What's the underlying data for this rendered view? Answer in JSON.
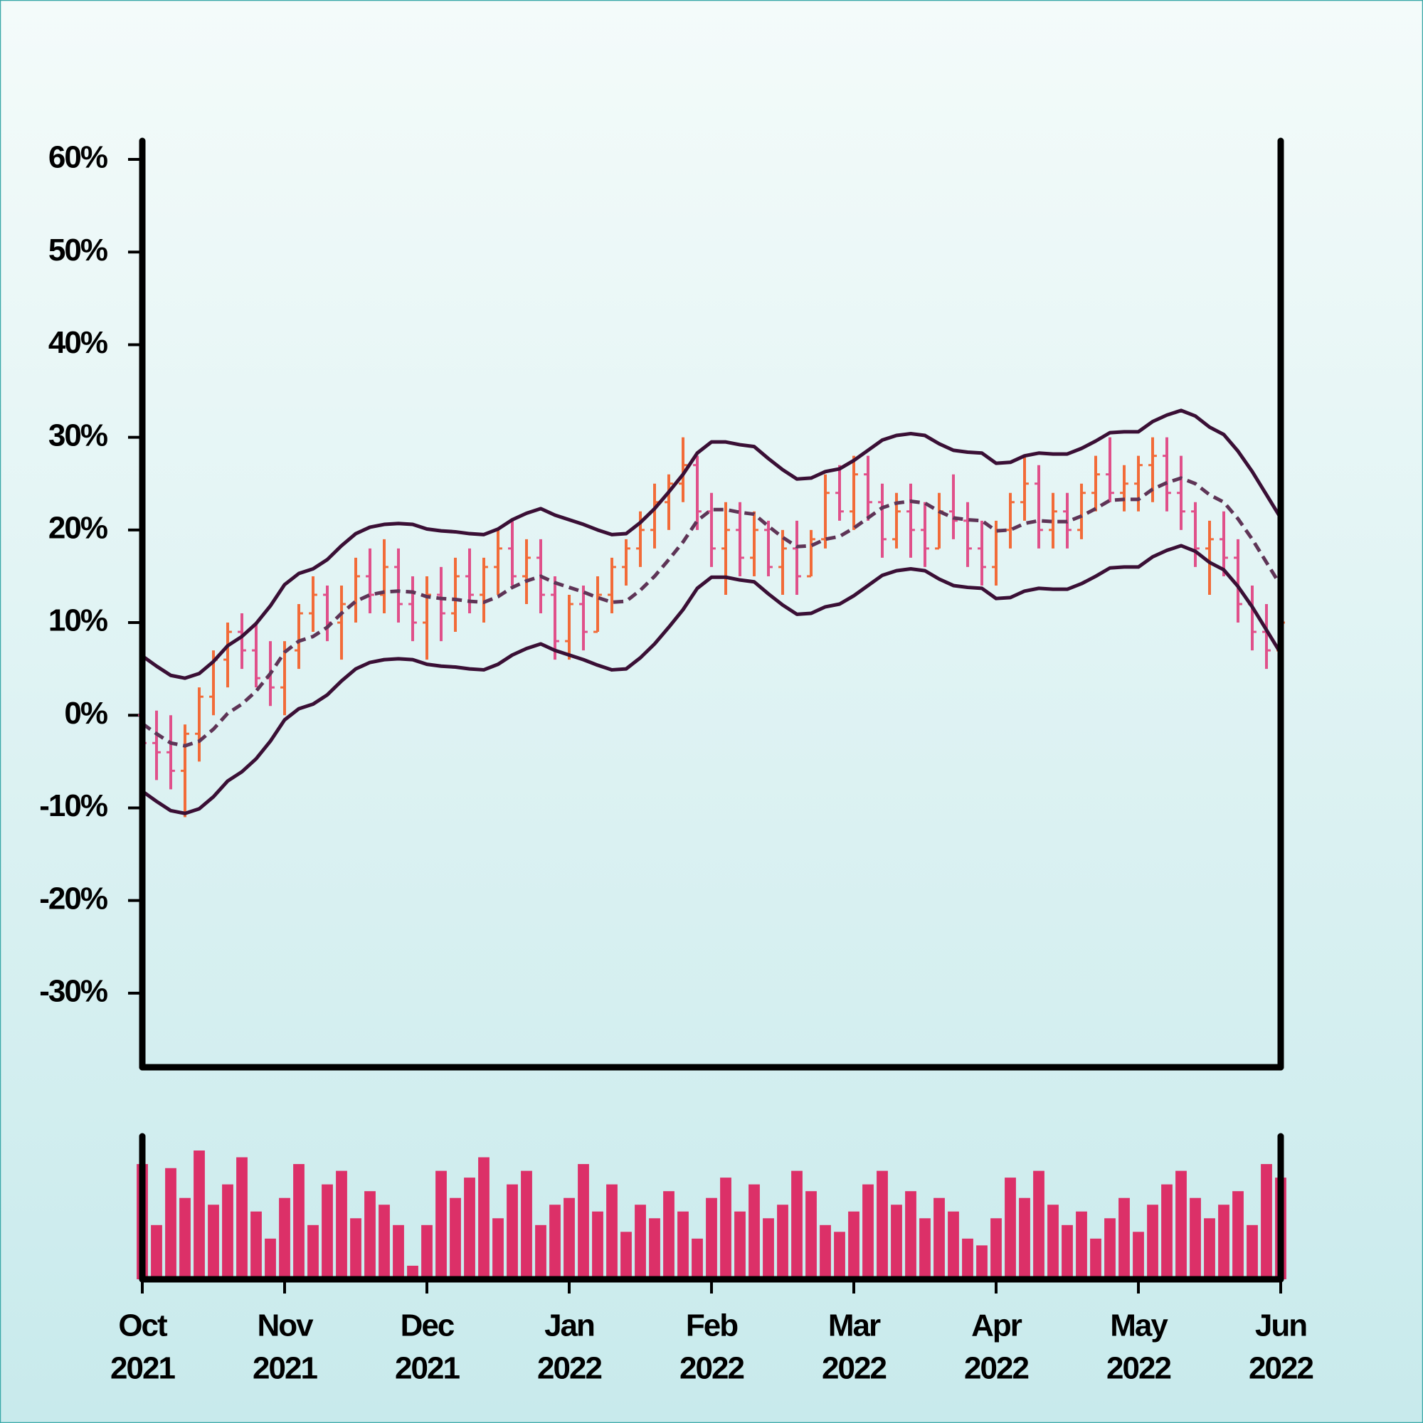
{
  "chart_data": {
    "type": "ohlc",
    "x": [
      0,
      0.1,
      0.2,
      0.3,
      0.4,
      0.5,
      0.6,
      0.7,
      0.8,
      0.9,
      1,
      1.1,
      1.2,
      1.3,
      1.4,
      1.5,
      1.6,
      1.7,
      1.8,
      1.9,
      2,
      2.1,
      2.2,
      2.3,
      2.4,
      2.5,
      2.6,
      2.7,
      2.8,
      2.9,
      3,
      3.1,
      3.2,
      3.3,
      3.4,
      3.5,
      3.6,
      3.7,
      3.8,
      3.9,
      4,
      4.1,
      4.2,
      4.3,
      4.4,
      4.5,
      4.6,
      4.7,
      4.8,
      4.9,
      5,
      5.1,
      5.2,
      5.3,
      5.4,
      5.5,
      5.6,
      5.7,
      5.8,
      5.9,
      6,
      6.1,
      6.2,
      6.3,
      6.4,
      6.5,
      6.6,
      6.7,
      6.8,
      6.9,
      7,
      7.1,
      7.2,
      7.3,
      7.4,
      7.5,
      7.6,
      7.7,
      7.8,
      7.9,
      8
    ],
    "open": [
      0,
      -3,
      -4,
      -6,
      -2,
      2,
      6,
      9,
      7,
      4,
      3,
      7,
      11,
      13,
      10,
      12,
      15,
      13,
      16,
      12,
      10,
      13,
      11,
      15,
      13,
      16,
      18,
      15,
      17,
      13,
      8,
      12,
      9,
      13,
      16,
      18,
      20,
      23,
      25,
      27,
      22,
      18,
      20,
      17,
      20,
      16,
      18,
      15,
      19,
      24,
      22,
      26,
      23,
      19,
      22,
      20,
      18,
      22,
      21,
      18,
      16,
      20,
      23,
      25,
      20,
      22,
      20,
      24,
      26,
      24,
      25,
      27,
      28,
      24,
      22,
      18,
      19,
      17,
      12,
      9,
      7
    ],
    "high": [
      1.5,
      0.5,
      0,
      -1,
      3,
      7,
      10,
      11,
      10,
      8,
      8,
      12,
      15,
      14,
      14,
      17,
      18,
      19,
      18,
      15,
      15,
      16,
      17,
      18,
      17,
      20,
      21,
      19,
      19,
      15,
      13,
      14,
      15,
      17,
      19,
      22,
      25,
      26,
      30,
      28,
      24,
      23,
      23,
      22,
      21,
      20,
      21,
      20,
      26,
      27,
      28,
      28,
      25,
      24,
      25,
      23,
      24,
      26,
      23,
      21,
      21,
      24,
      28,
      27,
      24,
      24,
      25,
      28,
      30,
      27,
      28,
      30,
      30,
      28,
      23,
      21,
      22,
      19,
      14,
      12,
      12
    ],
    "low": [
      -4,
      -7,
      -8,
      -11,
      -5,
      0,
      3,
      5,
      3,
      1,
      0,
      5,
      9,
      8,
      6,
      10,
      11,
      11,
      10,
      8,
      6,
      8,
      9,
      11,
      10,
      13,
      14,
      12,
      11,
      6,
      6,
      7,
      9,
      11,
      14,
      16,
      18,
      20,
      23,
      20,
      16,
      13,
      15,
      15,
      15,
      13,
      13,
      15,
      18,
      21,
      20,
      21,
      17,
      18,
      17,
      16,
      18,
      19,
      16,
      14,
      14,
      18,
      21,
      18,
      18,
      18,
      19,
      22,
      23,
      22,
      22,
      23,
      22,
      20,
      16,
      13,
      15,
      10,
      7,
      5,
      4
    ],
    "close": [
      -3,
      -4,
      -6,
      -2,
      2,
      6,
      9,
      7,
      4,
      3,
      7,
      11,
      13,
      10,
      12,
      15,
      13,
      16,
      12,
      10,
      13,
      11,
      15,
      13,
      16,
      18,
      15,
      17,
      13,
      8,
      12,
      9,
      13,
      16,
      18,
      20,
      23,
      25,
      27,
      22,
      18,
      20,
      17,
      20,
      16,
      18,
      15,
      19,
      24,
      22,
      26,
      23,
      19,
      22,
      20,
      18,
      22,
      21,
      18,
      16,
      20,
      23,
      25,
      20,
      22,
      20,
      24,
      26,
      24,
      25,
      27,
      28,
      24,
      22,
      18,
      19,
      17,
      12,
      9,
      7,
      10
    ],
    "upper_band": [
      6.4,
      5.3,
      4.3,
      4,
      4.5,
      5.8,
      7.5,
      8.5,
      9.9,
      11.8,
      14.1,
      15.3,
      15.8,
      16.8,
      18.3,
      19.6,
      20.3,
      20.6,
      20.7,
      20.6,
      20.1,
      19.9,
      19.8,
      19.6,
      19.5,
      20.1,
      21.1,
      21.8,
      22.3,
      21.6,
      21.1,
      20.6,
      20,
      19.5,
      19.6,
      20.8,
      22.3,
      24.1,
      26,
      28.3,
      29.5,
      29.5,
      29.2,
      29,
      27.7,
      26.5,
      25.5,
      25.6,
      26.3,
      26.6,
      27.5,
      28.6,
      29.7,
      30.2,
      30.4,
      30.2,
      29.3,
      28.6,
      28.4,
      28.3,
      27.2,
      27.3,
      28,
      28.3,
      28.2,
      28.2,
      28.8,
      29.6,
      30.5,
      30.6,
      30.6,
      31.7,
      32.4,
      32.9,
      32.3,
      31.1,
      30.3,
      28.5,
      26.3,
      23.8,
      21.3
    ],
    "middle_band": [
      -0.9,
      -2,
      -3,
      -3.3,
      -2.8,
      -1.5,
      0.2,
      1.2,
      2.6,
      4.5,
      6.8,
      8,
      8.5,
      9.5,
      11,
      12.3,
      13,
      13.3,
      13.4,
      13.3,
      12.8,
      12.6,
      12.5,
      12.3,
      12.2,
      12.8,
      13.8,
      14.5,
      15,
      14.3,
      13.8,
      13.3,
      12.7,
      12.2,
      12.3,
      13.5,
      15,
      16.8,
      18.7,
      21,
      22.2,
      22.2,
      21.9,
      21.7,
      20.4,
      19.2,
      18.2,
      18.3,
      19,
      19.3,
      20.2,
      21.3,
      22.4,
      22.9,
      23.1,
      22.9,
      22,
      21.3,
      21.1,
      21,
      19.9,
      20,
      20.7,
      21,
      20.9,
      20.9,
      21.5,
      22.3,
      23.2,
      23.3,
      23.3,
      24.4,
      25.1,
      25.6,
      25,
      23.8,
      23,
      21.2,
      19,
      16.5,
      14
    ],
    "lower_band": [
      -8.2,
      -9.3,
      -10.3,
      -10.6,
      -10.1,
      -8.8,
      -7.1,
      -6.1,
      -4.7,
      -2.8,
      -0.5,
      0.7,
      1.2,
      2.2,
      3.7,
      5,
      5.7,
      6,
      6.1,
      6,
      5.5,
      5.3,
      5.2,
      5,
      4.9,
      5.5,
      6.5,
      7.2,
      7.7,
      7,
      6.5,
      6,
      5.4,
      4.9,
      5,
      6.2,
      7.7,
      9.5,
      11.4,
      13.7,
      14.9,
      14.9,
      14.6,
      14.4,
      13.1,
      11.9,
      10.9,
      11,
      11.7,
      12,
      12.9,
      14,
      15.1,
      15.6,
      15.8,
      15.6,
      14.7,
      14,
      13.8,
      13.7,
      12.6,
      12.7,
      13.4,
      13.7,
      13.6,
      13.6,
      14.2,
      15,
      15.9,
      16,
      16,
      17.1,
      17.8,
      18.3,
      17.7,
      16.5,
      15.7,
      13.9,
      11.7,
      9.2,
      6.7
    ],
    "volume": [
      85,
      40,
      82,
      60,
      95,
      55,
      70,
      90,
      50,
      30,
      60,
      85,
      40,
      70,
      80,
      45,
      65,
      55,
      40,
      10,
      40,
      80,
      60,
      75,
      90,
      45,
      70,
      80,
      40,
      55,
      60,
      85,
      50,
      70,
      35,
      55,
      45,
      65,
      50,
      30,
      60,
      75,
      50,
      70,
      45,
      55,
      80,
      65,
      40,
      35,
      50,
      70,
      80,
      55,
      65,
      45,
      60,
      50,
      30,
      25,
      45,
      75,
      60,
      80,
      55,
      40,
      50,
      30,
      45,
      60,
      35,
      55,
      70,
      80,
      60,
      45,
      55,
      65,
      40,
      85,
      75
    ],
    "ylim": [
      -38,
      62
    ],
    "yticks": [
      {
        "value": -30,
        "label": "-30%"
      },
      {
        "value": -20,
        "label": "-20%"
      },
      {
        "value": -10,
        "label": "-10%"
      },
      {
        "value": 0,
        "label": "0%"
      },
      {
        "value": 10,
        "label": "10%"
      },
      {
        "value": 20,
        "label": "20%"
      },
      {
        "value": 30,
        "label": "30%"
      },
      {
        "value": 40,
        "label": "40%"
      },
      {
        "value": 50,
        "label": "50%"
      },
      {
        "value": 60,
        "label": "60%"
      }
    ],
    "xlim": [
      0,
      8
    ],
    "xticks": [
      {
        "value": 0,
        "label": [
          "Oct",
          "2021"
        ]
      },
      {
        "value": 1,
        "label": [
          "Nov",
          "2021"
        ]
      },
      {
        "value": 2,
        "label": [
          "Dec",
          "2021"
        ]
      },
      {
        "value": 3,
        "label": [
          "Jan",
          "2022"
        ]
      },
      {
        "value": 4,
        "label": [
          "Feb",
          "2022"
        ]
      },
      {
        "value": 5,
        "label": [
          "Mar",
          "2022"
        ]
      },
      {
        "value": 6,
        "label": [
          "Apr",
          "2022"
        ]
      },
      {
        "value": 7,
        "label": [
          "May",
          "2022"
        ]
      },
      {
        "value": 8,
        "label": [
          "Jun",
          "2022"
        ]
      }
    ],
    "up_color": "#f26b38",
    "down_color": "#e0508a",
    "band_color": "#3a0f35",
    "middle_color": "#5e3456",
    "volume_color": "#dc3068"
  }
}
